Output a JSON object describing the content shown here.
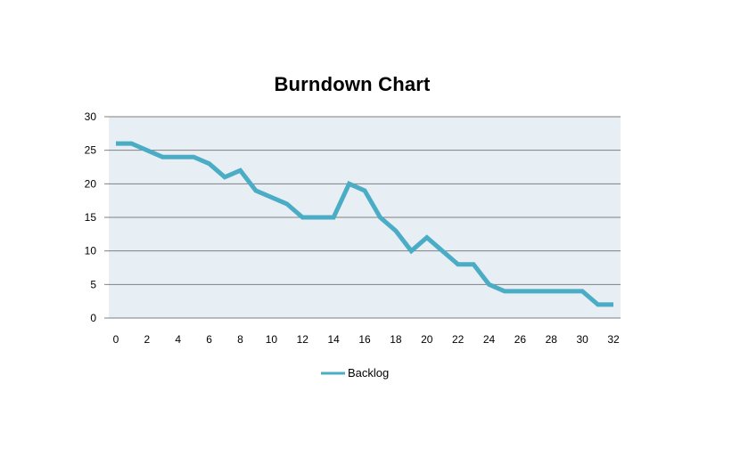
{
  "chart_data": {
    "type": "line",
    "title": "Burndown Chart",
    "xlabel": "",
    "ylabel": "",
    "x": [
      0,
      1,
      2,
      3,
      4,
      5,
      6,
      7,
      8,
      9,
      10,
      11,
      12,
      13,
      14,
      15,
      16,
      17,
      18,
      19,
      20,
      21,
      22,
      23,
      24,
      25,
      26,
      27,
      28,
      29,
      30,
      31,
      32
    ],
    "x_ticks": [
      0,
      2,
      4,
      6,
      8,
      10,
      12,
      14,
      16,
      18,
      20,
      22,
      24,
      26,
      28,
      30,
      32
    ],
    "xlim": [
      0,
      32
    ],
    "ylim": [
      0,
      30
    ],
    "y_ticks": [
      0,
      5,
      10,
      15,
      20,
      25,
      30
    ],
    "grid": "horizontal",
    "legend_position": "bottom",
    "series": [
      {
        "name": "Backlog",
        "color": "#4bacc6",
        "values": [
          26,
          26,
          25,
          24,
          24,
          24,
          23,
          21,
          22,
          19,
          18,
          17,
          15,
          15,
          15,
          20,
          19,
          15,
          13,
          10,
          12,
          10,
          8,
          8,
          5,
          4,
          4,
          4,
          4,
          4,
          4,
          2,
          2
        ]
      }
    ],
    "plot_background": "#e8eff4",
    "gridline_color": "#7f7f7f"
  }
}
